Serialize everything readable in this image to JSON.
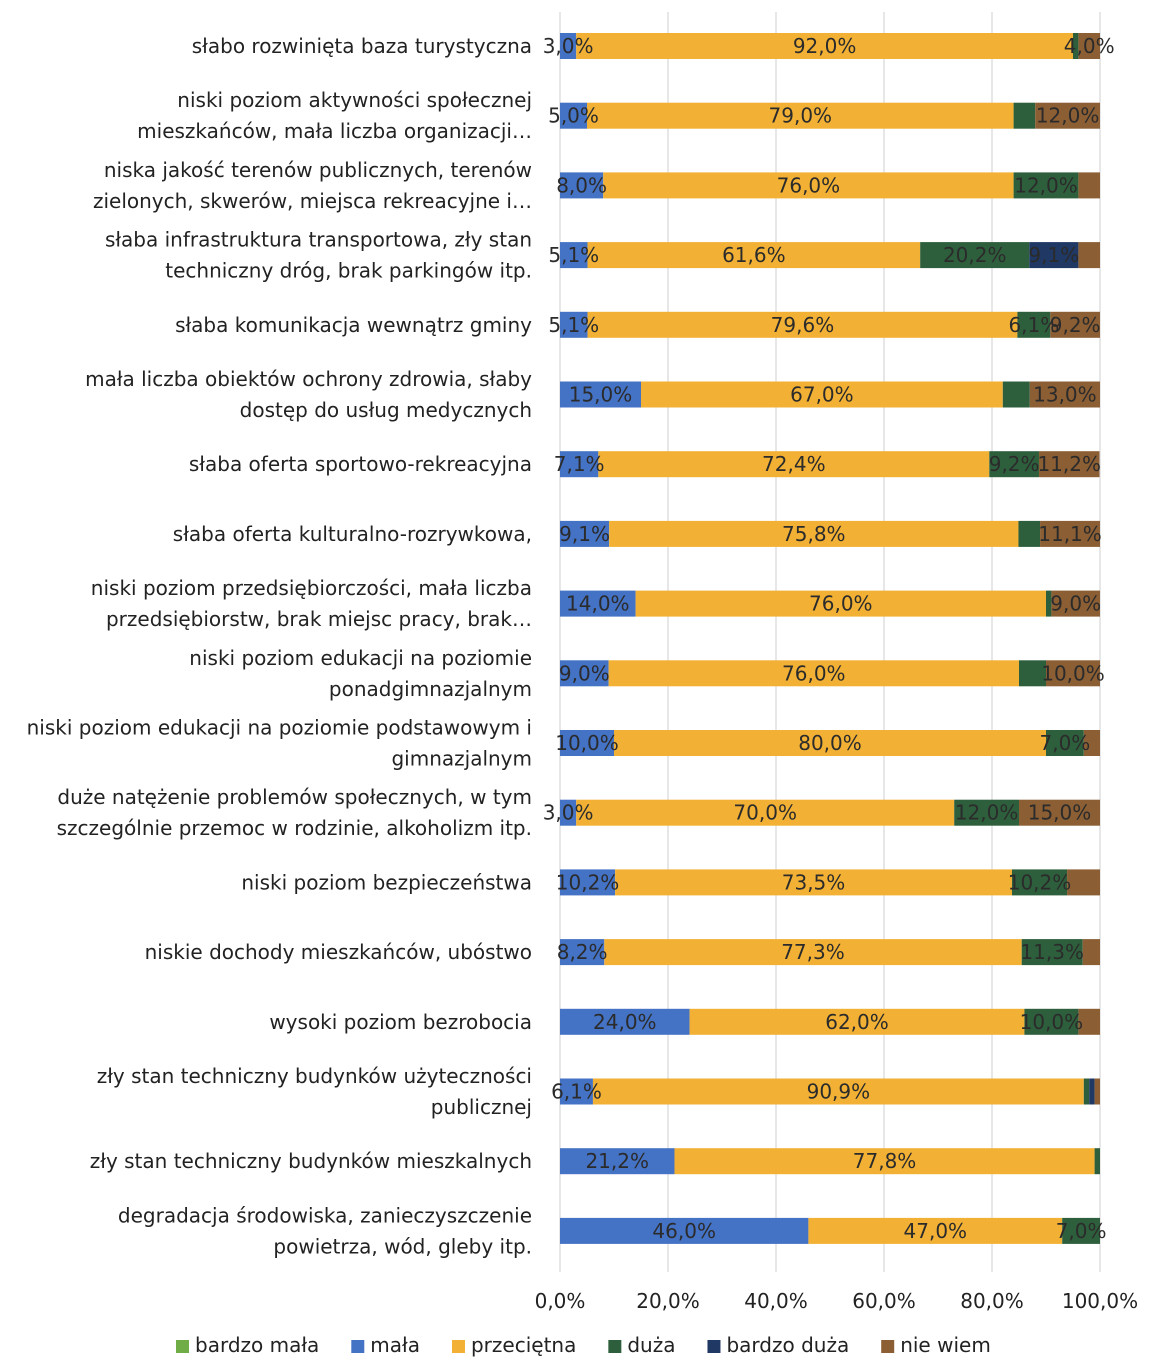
{
  "chart_data": {
    "type": "bar",
    "orientation": "horizontal",
    "stacked": true,
    "title": "",
    "xlabel": "",
    "ylabel": "",
    "xlim": [
      0,
      100
    ],
    "x_ticks": [
      "0,0%",
      "20,0%",
      "40,0%",
      "60,0%",
      "80,0%",
      "100,0%"
    ],
    "grid": true,
    "legend_position": "bottom",
    "categories": [
      [
        "słabo rozwinięta baza turystyczna"
      ],
      [
        "niski poziom aktywności społecznej",
        "mieszkańców, mała liczba organizacji…"
      ],
      [
        "niska jakość terenów publicznych, terenów",
        "zielonych, skwerów, miejsca rekreacyjne i…"
      ],
      [
        "słaba infrastruktura transportowa, zły stan",
        "techniczny dróg, brak parkingów itp."
      ],
      [
        "słaba komunikacja wewnątrz gminy"
      ],
      [
        "mała liczba obiektów ochrony zdrowia, słaby",
        "dostęp do usług medycznych"
      ],
      [
        "słaba oferta sportowo-rekreacyjna"
      ],
      [
        "słaba oferta kulturalno-rozrywkowa,"
      ],
      [
        "niski poziom przedsiębiorczości, mała liczba",
        "przedsiębiorstw, brak miejsc pracy, brak…"
      ],
      [
        "niski poziom edukacji na poziomie",
        "ponadgimnazjalnym"
      ],
      [
        "niski poziom edukacji na poziomie podstawowym i",
        "gimnazjalnym"
      ],
      [
        "duże natężenie problemów społecznych, w tym",
        "szczególnie przemoc w rodzinie, alkoholizm itp."
      ],
      [
        "niski poziom bezpieczeństwa"
      ],
      [
        "niskie dochody mieszkańców, ubóstwo"
      ],
      [
        "wysoki poziom bezrobocia"
      ],
      [
        "zły stan techniczny budynków użyteczności",
        "publicznej"
      ],
      [
        "zły stan techniczny budynków mieszkalnych"
      ],
      [
        "degradacja środowiska, zanieczyszczenie",
        "powietrza, wód, gleby itp."
      ]
    ],
    "series": [
      {
        "name": "bardzo mała",
        "color": "#70ad47",
        "values": [
          0,
          0,
          0,
          0,
          0,
          0,
          0,
          0,
          0,
          0,
          0,
          0,
          0,
          0,
          0,
          0,
          0,
          0
        ]
      },
      {
        "name": "mała",
        "color": "#4472c4",
        "values": [
          3.0,
          5.0,
          8.0,
          5.1,
          5.1,
          15.0,
          7.1,
          9.1,
          14.0,
          9.0,
          10.0,
          3.0,
          10.2,
          8.2,
          24.0,
          6.1,
          21.2,
          46.0
        ]
      },
      {
        "name": "przeciętna",
        "color": "#f2b134",
        "values": [
          92.0,
          79.0,
          76.0,
          61.6,
          79.6,
          67.0,
          72.4,
          75.8,
          76.0,
          76.0,
          80.0,
          70.0,
          73.5,
          77.3,
          62.0,
          90.9,
          77.8,
          47.0
        ]
      },
      {
        "name": "duża",
        "color": "#2e5f3c",
        "values": [
          1.0,
          4.0,
          12.0,
          20.2,
          6.1,
          5.0,
          9.2,
          4.0,
          1.0,
          5.0,
          7.0,
          12.0,
          10.2,
          11.3,
          10.0,
          1.0,
          1.0,
          7.0
        ]
      },
      {
        "name": "bardzo duża",
        "color": "#1f3864",
        "values": [
          0,
          0,
          0,
          9.1,
          0,
          0,
          0,
          0,
          0,
          0,
          0,
          0,
          0,
          0,
          0,
          1.0,
          0,
          0
        ]
      },
      {
        "name": "nie wiem",
        "color": "#8b5e34",
        "values": [
          4.0,
          12.0,
          4.0,
          4.0,
          9.2,
          13.0,
          11.2,
          11.1,
          9.0,
          10.0,
          3.0,
          15.0,
          6.1,
          3.2,
          4.0,
          1.0,
          0,
          0
        ]
      }
    ],
    "data_labels": [
      [
        {
          "series": 1,
          "text": "3,0%"
        },
        {
          "series": 2,
          "text": "92,0%"
        },
        {
          "series": 5,
          "text": "4,0%"
        }
      ],
      [
        {
          "series": 1,
          "text": "5,0%"
        },
        {
          "series": 2,
          "text": "79,0%"
        },
        {
          "series": 5,
          "text": "12,0%"
        }
      ],
      [
        {
          "series": 1,
          "text": "8,0%"
        },
        {
          "series": 2,
          "text": "76,0%"
        },
        {
          "series": 3,
          "text": "12,0%"
        }
      ],
      [
        {
          "series": 1,
          "text": "5,1%"
        },
        {
          "series": 2,
          "text": "61,6%"
        },
        {
          "series": 3,
          "text": "20,2%"
        },
        {
          "series": 4,
          "text": "9,1%"
        }
      ],
      [
        {
          "series": 1,
          "text": "5,1%"
        },
        {
          "series": 2,
          "text": "79,6%"
        },
        {
          "series": 3,
          "text": "6,1%"
        },
        {
          "series": 5,
          "text": "9,2%"
        }
      ],
      [
        {
          "series": 1,
          "text": "15,0%"
        },
        {
          "series": 2,
          "text": "67,0%"
        },
        {
          "series": 5,
          "text": "13,0%"
        }
      ],
      [
        {
          "series": 1,
          "text": "7,1%"
        },
        {
          "series": 2,
          "text": "72,4%"
        },
        {
          "series": 3,
          "text": "9,2%"
        },
        {
          "series": 5,
          "text": "11,2%"
        }
      ],
      [
        {
          "series": 1,
          "text": "9,1%"
        },
        {
          "series": 2,
          "text": "75,8%"
        },
        {
          "series": 5,
          "text": "11,1%"
        }
      ],
      [
        {
          "series": 1,
          "text": "14,0%"
        },
        {
          "series": 2,
          "text": "76,0%"
        },
        {
          "series": 5,
          "text": "9,0%"
        }
      ],
      [
        {
          "series": 1,
          "text": "9,0%"
        },
        {
          "series": 2,
          "text": "76,0%"
        },
        {
          "series": 5,
          "text": "10,0%"
        }
      ],
      [
        {
          "series": 1,
          "text": "10,0%"
        },
        {
          "series": 2,
          "text": "80,0%"
        },
        {
          "series": 3,
          "text": "7,0%"
        }
      ],
      [
        {
          "series": 1,
          "text": "3,0%"
        },
        {
          "series": 2,
          "text": "70,0%"
        },
        {
          "series": 3,
          "text": "12,0%"
        },
        {
          "series": 5,
          "text": "15,0%"
        }
      ],
      [
        {
          "series": 1,
          "text": "10,2%"
        },
        {
          "series": 2,
          "text": "73,5%"
        },
        {
          "series": 3,
          "text": "10,2%"
        }
      ],
      [
        {
          "series": 1,
          "text": "8,2%"
        },
        {
          "series": 2,
          "text": "77,3%"
        },
        {
          "series": 3,
          "text": "11,3%"
        }
      ],
      [
        {
          "series": 1,
          "text": "24,0%"
        },
        {
          "series": 2,
          "text": "62,0%"
        },
        {
          "series": 3,
          "text": "10,0%"
        }
      ],
      [
        {
          "series": 1,
          "text": "6,1%"
        },
        {
          "series": 2,
          "text": "90,9%"
        }
      ],
      [
        {
          "series": 1,
          "text": "21,2%"
        },
        {
          "series": 2,
          "text": "77,8%"
        }
      ],
      [
        {
          "series": 1,
          "text": "46,0%"
        },
        {
          "series": 2,
          "text": "47,0%"
        },
        {
          "series": 3,
          "text": "7,0%"
        }
      ]
    ]
  }
}
